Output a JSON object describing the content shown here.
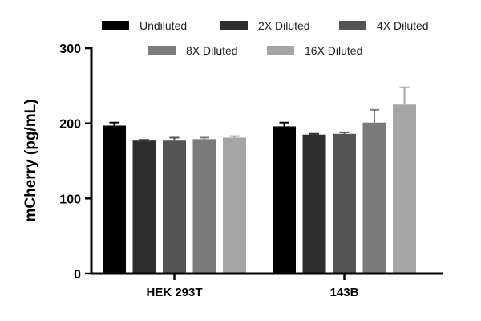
{
  "chart_data": {
    "type": "bar",
    "title": "",
    "xlabel": "",
    "ylabel": "mCherry (pg/mL)",
    "ylim": [
      0,
      300
    ],
    "yticks": [
      "0",
      "100",
      "200",
      "300"
    ],
    "grid": false,
    "legend_position": "top",
    "categories": [
      "HEK 293T",
      "143B"
    ],
    "series": [
      {
        "name": "Undiluted",
        "color": "#000000",
        "values": [
          197,
          196
        ],
        "errors": [
          4,
          5
        ]
      },
      {
        "name": "2X Diluted",
        "color": "#2e2e2e",
        "values": [
          177,
          185
        ],
        "errors": [
          1,
          1
        ]
      },
      {
        "name": "4X Diluted",
        "color": "#545454",
        "values": [
          177,
          186
        ],
        "errors": [
          4,
          2
        ]
      },
      {
        "name": "8X Diluted",
        "color": "#7b7b7b",
        "values": [
          179,
          201
        ],
        "errors": [
          2,
          17
        ]
      },
      {
        "name": "16X Diluted",
        "color": "#a5a5a5",
        "values": [
          181,
          225
        ],
        "errors": [
          2,
          23
        ]
      }
    ]
  }
}
